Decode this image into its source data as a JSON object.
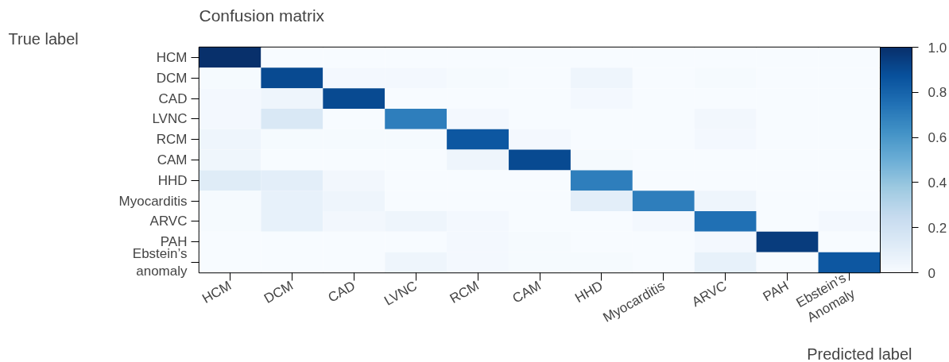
{
  "chart_data": {
    "type": "heatmap",
    "title": "Confusion matrix",
    "xlabel": "Predicted label",
    "ylabel": "True label",
    "categories": [
      "HCM",
      "DCM",
      "CAD",
      "LVNC",
      "RCM",
      "CAM",
      "HHD",
      "Myocarditis",
      "ARVC",
      "PAH",
      "Ebstein’s\nAnomaly"
    ],
    "y_categories": [
      "HCM",
      "DCM",
      "CAD",
      "LVNC",
      "RCM",
      "CAM",
      "HHD",
      "Myocarditis",
      "ARVC",
      "PAH",
      "Ebstein’s\nanomaly"
    ],
    "cells": [
      [
        1.0,
        0,
        0,
        0,
        0,
        0,
        0,
        0,
        0,
        0,
        0
      ],
      [
        0.01,
        0.9,
        0.02,
        0.02,
        0.01,
        0,
        0.05,
        0,
        0.01,
        0,
        0
      ],
      [
        0.02,
        0.05,
        0.9,
        0,
        0,
        0,
        0.02,
        0,
        0,
        0,
        0
      ],
      [
        0.02,
        0.15,
        0,
        0.7,
        0.02,
        0,
        0,
        0,
        0.03,
        0,
        0
      ],
      [
        0.05,
        0.01,
        0.01,
        0.01,
        0.85,
        0.02,
        0,
        0,
        0.02,
        0,
        0
      ],
      [
        0.04,
        0,
        0,
        0,
        0.05,
        0.9,
        0.01,
        0,
        0,
        0,
        0
      ],
      [
        0.12,
        0.1,
        0.03,
        0,
        0,
        0,
        0.7,
        0,
        0,
        0,
        0
      ],
      [
        0.01,
        0.08,
        0.05,
        0,
        0,
        0,
        0.1,
        0.7,
        0.05,
        0,
        0
      ],
      [
        0.01,
        0.08,
        0.03,
        0.05,
        0.02,
        0,
        0,
        0.02,
        0.75,
        0,
        0.02
      ],
      [
        0,
        0,
        0,
        0,
        0.02,
        0.01,
        0,
        0,
        0.02,
        0.95,
        0
      ],
      [
        0,
        0,
        0,
        0.05,
        0.02,
        0.01,
        0.01,
        0,
        0.08,
        0,
        0.85
      ]
    ],
    "clim": [
      0,
      1
    ],
    "cticks": [
      {
        "value": 0,
        "label": "0"
      },
      0.2,
      0.4,
      0.6,
      0.8,
      {
        "value": 1,
        "label": "1.0"
      }
    ],
    "grid": false
  }
}
